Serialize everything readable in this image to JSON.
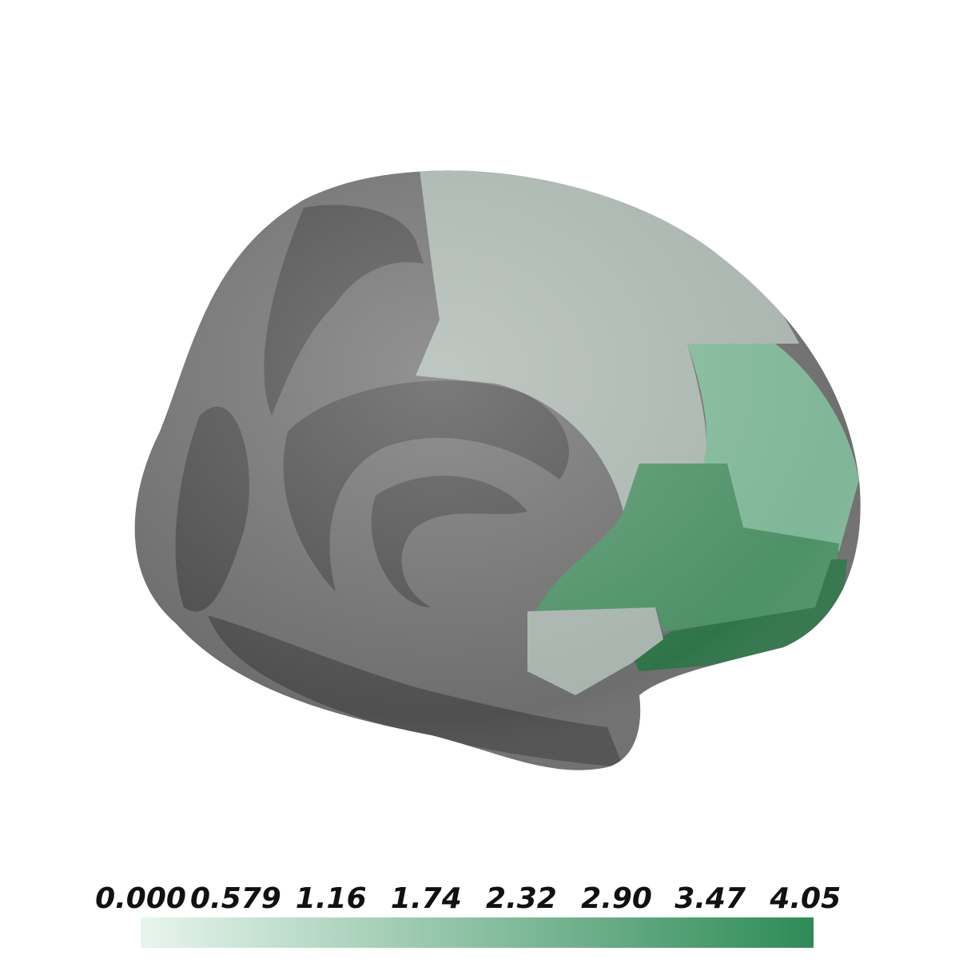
{
  "chart_data": {
    "type": "colorbar",
    "clim": [
      0,
      4.1
    ],
    "cmap": [
      "#e8f5ee",
      "#2e8b57"
    ],
    "ticks": [
      {
        "value": 0,
        "label": "0.000"
      },
      0.579,
      1.16,
      1.74,
      2.32,
      {
        "value": 2.9,
        "label": "2.90"
      },
      3.47,
      4.05
    ]
  }
}
